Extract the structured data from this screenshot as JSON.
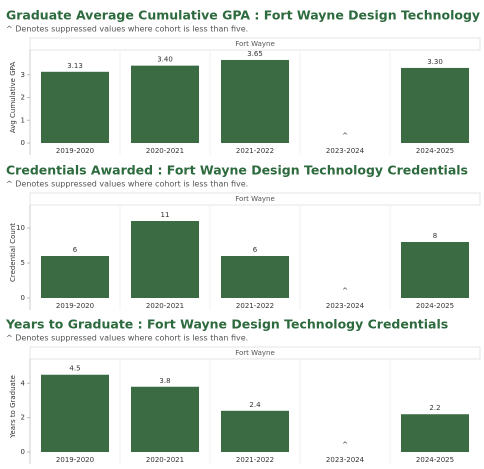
{
  "chart_data": [
    {
      "type": "bar",
      "title": "Graduate Average Cumulative GPA : Fort Wayne Design Technology Credentials",
      "subtitle": "^ Denotes suppressed values where cohort is less than five.",
      "panel_label": "Fort Wayne",
      "y_label": "Avg Cumulative GPA",
      "categories": [
        "2019-2020",
        "2020-2021",
        "2021-2022",
        "2023-2024",
        "2024-2025"
      ],
      "values": [
        3.13,
        3.4,
        3.65,
        null,
        3.3
      ],
      "value_labels": [
        "3.13",
        "3.40",
        "3.65",
        "^",
        "3.30"
      ],
      "color": "#3b6b43",
      "ylim": [
        0,
        4
      ],
      "yticks": [
        0,
        1,
        2,
        3
      ]
    },
    {
      "type": "bar",
      "title": "Credentials Awarded : Fort Wayne Design Technology Credentials",
      "subtitle": "^ Denotes suppressed values where cohort is less than five.",
      "panel_label": "Fort Wayne",
      "y_label": "Credential Count",
      "categories": [
        "2019-2020",
        "2020-2021",
        "2021-2022",
        "2023-2024",
        "2024-2025"
      ],
      "values": [
        6,
        11,
        6,
        null,
        8
      ],
      "value_labels": [
        "6",
        "11",
        "6",
        "^",
        "8"
      ],
      "color": "#3b6b43",
      "ylim": [
        0,
        13
      ],
      "yticks": [
        0,
        5,
        10
      ]
    },
    {
      "type": "bar",
      "title": "Years to Graduate : Fort Wayne Design Technology Credentials",
      "subtitle": "^ Denotes suppressed values where cohort is less than five.",
      "panel_label": "Fort Wayne",
      "y_label": "Years to Graduate",
      "categories": [
        "2019-2020",
        "2020-2021",
        "2021-2022",
        "2023-2024",
        "2024-2025"
      ],
      "values": [
        4.5,
        3.8,
        2.4,
        null,
        2.2
      ],
      "value_labels": [
        "4.5",
        "3.8",
        "2.4",
        "^",
        "2.2"
      ],
      "color": "#3b6b43",
      "ylim": [
        0,
        5.3
      ],
      "yticks": [
        0,
        2,
        4
      ]
    }
  ]
}
